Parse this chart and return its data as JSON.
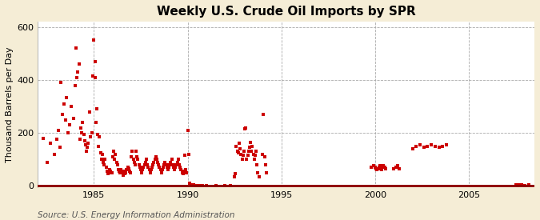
{
  "title": "Weekly U.S. Crude Oil Imports by SPR",
  "ylabel": "Thousand Barrels per Day",
  "source": "Source: U.S. Energy Information Administration",
  "bg_color": "#F5EDD6",
  "plot_bg_color": "#FFFFFF",
  "marker_color": "#CC0000",
  "grid_color": "#AAAAAA",
  "axis_line_color": "#8B0000",
  "xlim": [
    1982.0,
    2008.5
  ],
  "ylim": [
    -5,
    620
  ],
  "yticks": [
    0,
    200,
    400,
    600
  ],
  "xticks": [
    1985,
    1990,
    1995,
    2000,
    2005
  ],
  "title_fontsize": 11,
  "ylabel_fontsize": 8,
  "source_fontsize": 7.5,
  "scatter_data": [
    [
      1982.3,
      180
    ],
    [
      1982.5,
      90
    ],
    [
      1982.7,
      160
    ],
    [
      1982.9,
      120
    ],
    [
      1983.0,
      175
    ],
    [
      1983.1,
      210
    ],
    [
      1983.2,
      145
    ],
    [
      1983.25,
      390
    ],
    [
      1983.3,
      270
    ],
    [
      1983.4,
      310
    ],
    [
      1983.5,
      250
    ],
    [
      1983.55,
      335
    ],
    [
      1983.6,
      200
    ],
    [
      1983.7,
      230
    ],
    [
      1983.8,
      300
    ],
    [
      1983.9,
      255
    ],
    [
      1984.0,
      380
    ],
    [
      1984.05,
      520
    ],
    [
      1984.1,
      410
    ],
    [
      1984.15,
      430
    ],
    [
      1984.2,
      460
    ],
    [
      1984.25,
      175
    ],
    [
      1984.3,
      220
    ],
    [
      1984.35,
      200
    ],
    [
      1984.4,
      240
    ],
    [
      1984.45,
      195
    ],
    [
      1984.5,
      170
    ],
    [
      1984.55,
      155
    ],
    [
      1984.6,
      130
    ],
    [
      1984.65,
      145
    ],
    [
      1984.7,
      160
    ],
    [
      1984.75,
      280
    ],
    [
      1984.8,
      185
    ],
    [
      1984.9,
      200
    ],
    [
      1984.95,
      415
    ],
    [
      1985.0,
      550
    ],
    [
      1985.05,
      470
    ],
    [
      1985.08,
      410
    ],
    [
      1985.1,
      240
    ],
    [
      1985.15,
      290
    ],
    [
      1985.2,
      195
    ],
    [
      1985.25,
      150
    ],
    [
      1985.3,
      185
    ],
    [
      1985.35,
      125
    ],
    [
      1985.4,
      100
    ],
    [
      1985.45,
      120
    ],
    [
      1985.5,
      90
    ],
    [
      1985.55,
      80
    ],
    [
      1985.6,
      100
    ],
    [
      1985.65,
      70
    ],
    [
      1985.7,
      55
    ],
    [
      1985.75,
      45
    ],
    [
      1985.8,
      50
    ],
    [
      1985.85,
      60
    ],
    [
      1985.9,
      55
    ],
    [
      1985.95,
      50
    ],
    [
      1986.0,
      110
    ],
    [
      1986.05,
      130
    ],
    [
      1986.1,
      100
    ],
    [
      1986.15,
      120
    ],
    [
      1986.2,
      90
    ],
    [
      1986.25,
      80
    ],
    [
      1986.3,
      60
    ],
    [
      1986.35,
      55
    ],
    [
      1986.4,
      50
    ],
    [
      1986.45,
      60
    ],
    [
      1986.5,
      50
    ],
    [
      1986.55,
      40
    ],
    [
      1986.6,
      55
    ],
    [
      1986.65,
      45
    ],
    [
      1986.7,
      50
    ],
    [
      1986.75,
      60
    ],
    [
      1986.8,
      70
    ],
    [
      1986.85,
      65
    ],
    [
      1986.9,
      55
    ],
    [
      1986.95,
      50
    ],
    [
      1987.0,
      110
    ],
    [
      1987.05,
      130
    ],
    [
      1987.1,
      100
    ],
    [
      1987.15,
      90
    ],
    [
      1987.2,
      80
    ],
    [
      1987.25,
      130
    ],
    [
      1987.3,
      110
    ],
    [
      1987.35,
      100
    ],
    [
      1987.4,
      80
    ],
    [
      1987.45,
      70
    ],
    [
      1987.5,
      60
    ],
    [
      1987.55,
      50
    ],
    [
      1987.6,
      60
    ],
    [
      1987.65,
      70
    ],
    [
      1987.7,
      80
    ],
    [
      1987.75,
      90
    ],
    [
      1987.8,
      100
    ],
    [
      1987.85,
      80
    ],
    [
      1987.9,
      70
    ],
    [
      1987.95,
      60
    ],
    [
      1988.0,
      50
    ],
    [
      1988.05,
      60
    ],
    [
      1988.1,
      70
    ],
    [
      1988.15,
      80
    ],
    [
      1988.2,
      90
    ],
    [
      1988.25,
      100
    ],
    [
      1988.3,
      110
    ],
    [
      1988.35,
      100
    ],
    [
      1988.4,
      90
    ],
    [
      1988.45,
      80
    ],
    [
      1988.5,
      70
    ],
    [
      1988.55,
      60
    ],
    [
      1988.6,
      50
    ],
    [
      1988.65,
      60
    ],
    [
      1988.7,
      70
    ],
    [
      1988.75,
      80
    ],
    [
      1988.8,
      90
    ],
    [
      1988.85,
      80
    ],
    [
      1988.9,
      70
    ],
    [
      1988.95,
      60
    ],
    [
      1989.0,
      70
    ],
    [
      1989.05,
      80
    ],
    [
      1989.1,
      90
    ],
    [
      1989.15,
      100
    ],
    [
      1989.2,
      80
    ],
    [
      1989.25,
      70
    ],
    [
      1989.3,
      60
    ],
    [
      1989.35,
      70
    ],
    [
      1989.4,
      80
    ],
    [
      1989.45,
      90
    ],
    [
      1989.5,
      100
    ],
    [
      1989.55,
      80
    ],
    [
      1989.6,
      70
    ],
    [
      1989.65,
      60
    ],
    [
      1989.7,
      50
    ],
    [
      1989.75,
      45
    ],
    [
      1989.8,
      55
    ],
    [
      1989.85,
      115
    ],
    [
      1989.9,
      60
    ],
    [
      1989.95,
      50
    ],
    [
      1990.0,
      210
    ],
    [
      1990.05,
      120
    ],
    [
      1990.1,
      10
    ],
    [
      1990.2,
      5
    ],
    [
      1990.3,
      3
    ],
    [
      1990.4,
      2
    ],
    [
      1990.5,
      1
    ],
    [
      1990.6,
      0
    ],
    [
      1990.7,
      0
    ],
    [
      1990.8,
      0
    ],
    [
      1991.0,
      0
    ],
    [
      1991.5,
      0
    ],
    [
      1992.0,
      0
    ],
    [
      1992.3,
      0
    ],
    [
      1992.5,
      35
    ],
    [
      1992.55,
      45
    ],
    [
      1992.6,
      150
    ],
    [
      1992.65,
      130
    ],
    [
      1992.7,
      125
    ],
    [
      1992.75,
      160
    ],
    [
      1992.8,
      140
    ],
    [
      1992.85,
      120
    ],
    [
      1992.9,
      100
    ],
    [
      1992.95,
      115
    ],
    [
      1993.0,
      130
    ],
    [
      1993.05,
      215
    ],
    [
      1993.1,
      220
    ],
    [
      1993.15,
      100
    ],
    [
      1993.2,
      115
    ],
    [
      1993.25,
      130
    ],
    [
      1993.3,
      145
    ],
    [
      1993.35,
      165
    ],
    [
      1993.4,
      130
    ],
    [
      1993.45,
      150
    ],
    [
      1993.5,
      120
    ],
    [
      1993.55,
      100
    ],
    [
      1993.6,
      115
    ],
    [
      1993.65,
      130
    ],
    [
      1993.7,
      80
    ],
    [
      1993.75,
      50
    ],
    [
      1993.8,
      35
    ],
    [
      1994.0,
      120
    ],
    [
      1994.05,
      270
    ],
    [
      1994.1,
      110
    ],
    [
      1994.15,
      80
    ],
    [
      1994.2,
      50
    ],
    [
      1999.8,
      70
    ],
    [
      1999.9,
      75
    ],
    [
      2000.0,
      70
    ],
    [
      2000.05,
      65
    ],
    [
      2000.1,
      60
    ],
    [
      2000.15,
      65
    ],
    [
      2000.2,
      70
    ],
    [
      2000.25,
      75
    ],
    [
      2000.3,
      65
    ],
    [
      2000.35,
      60
    ],
    [
      2000.4,
      70
    ],
    [
      2000.45,
      75
    ],
    [
      2000.5,
      70
    ],
    [
      2000.55,
      65
    ],
    [
      2001.0,
      65
    ],
    [
      2001.1,
      70
    ],
    [
      2001.2,
      75
    ],
    [
      2001.3,
      65
    ],
    [
      2002.0,
      140
    ],
    [
      2002.2,
      150
    ],
    [
      2002.4,
      155
    ],
    [
      2002.6,
      145
    ],
    [
      2002.8,
      150
    ],
    [
      2003.0,
      155
    ],
    [
      2003.2,
      150
    ],
    [
      2003.4,
      145
    ],
    [
      2003.6,
      150
    ],
    [
      2003.8,
      155
    ],
    [
      2007.5,
      3
    ],
    [
      2007.6,
      2
    ],
    [
      2007.7,
      4
    ],
    [
      2007.8,
      3
    ],
    [
      2008.0,
      2
    ],
    [
      2008.2,
      3
    ]
  ]
}
